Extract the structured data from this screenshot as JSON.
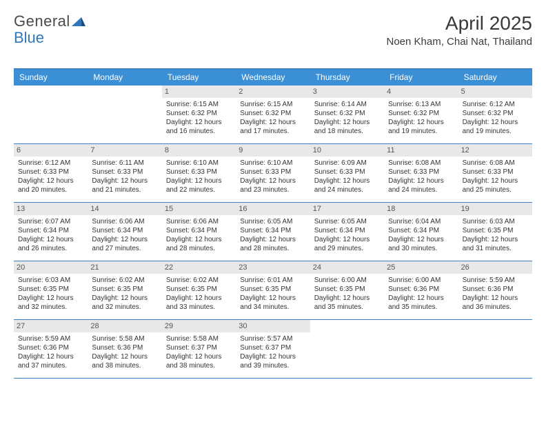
{
  "logo": {
    "part1": "General",
    "part2": "Blue"
  },
  "title": "April 2025",
  "location": "Noen Kham, Chai Nat, Thailand",
  "header_color": "#3b8fd4",
  "rule_color": "#3b7fc4",
  "daynum_bg": "#e8e8e8",
  "dow": [
    "Sunday",
    "Monday",
    "Tuesday",
    "Wednesday",
    "Thursday",
    "Friday",
    "Saturday"
  ],
  "weeks": [
    [
      null,
      null,
      {
        "n": "1",
        "sr": "Sunrise: 6:15 AM",
        "ss": "Sunset: 6:32 PM",
        "d1": "Daylight: 12 hours",
        "d2": "and 16 minutes."
      },
      {
        "n": "2",
        "sr": "Sunrise: 6:15 AM",
        "ss": "Sunset: 6:32 PM",
        "d1": "Daylight: 12 hours",
        "d2": "and 17 minutes."
      },
      {
        "n": "3",
        "sr": "Sunrise: 6:14 AM",
        "ss": "Sunset: 6:32 PM",
        "d1": "Daylight: 12 hours",
        "d2": "and 18 minutes."
      },
      {
        "n": "4",
        "sr": "Sunrise: 6:13 AM",
        "ss": "Sunset: 6:32 PM",
        "d1": "Daylight: 12 hours",
        "d2": "and 19 minutes."
      },
      {
        "n": "5",
        "sr": "Sunrise: 6:12 AM",
        "ss": "Sunset: 6:32 PM",
        "d1": "Daylight: 12 hours",
        "d2": "and 19 minutes."
      }
    ],
    [
      {
        "n": "6",
        "sr": "Sunrise: 6:12 AM",
        "ss": "Sunset: 6:33 PM",
        "d1": "Daylight: 12 hours",
        "d2": "and 20 minutes."
      },
      {
        "n": "7",
        "sr": "Sunrise: 6:11 AM",
        "ss": "Sunset: 6:33 PM",
        "d1": "Daylight: 12 hours",
        "d2": "and 21 minutes."
      },
      {
        "n": "8",
        "sr": "Sunrise: 6:10 AM",
        "ss": "Sunset: 6:33 PM",
        "d1": "Daylight: 12 hours",
        "d2": "and 22 minutes."
      },
      {
        "n": "9",
        "sr": "Sunrise: 6:10 AM",
        "ss": "Sunset: 6:33 PM",
        "d1": "Daylight: 12 hours",
        "d2": "and 23 minutes."
      },
      {
        "n": "10",
        "sr": "Sunrise: 6:09 AM",
        "ss": "Sunset: 6:33 PM",
        "d1": "Daylight: 12 hours",
        "d2": "and 24 minutes."
      },
      {
        "n": "11",
        "sr": "Sunrise: 6:08 AM",
        "ss": "Sunset: 6:33 PM",
        "d1": "Daylight: 12 hours",
        "d2": "and 24 minutes."
      },
      {
        "n": "12",
        "sr": "Sunrise: 6:08 AM",
        "ss": "Sunset: 6:33 PM",
        "d1": "Daylight: 12 hours",
        "d2": "and 25 minutes."
      }
    ],
    [
      {
        "n": "13",
        "sr": "Sunrise: 6:07 AM",
        "ss": "Sunset: 6:34 PM",
        "d1": "Daylight: 12 hours",
        "d2": "and 26 minutes."
      },
      {
        "n": "14",
        "sr": "Sunrise: 6:06 AM",
        "ss": "Sunset: 6:34 PM",
        "d1": "Daylight: 12 hours",
        "d2": "and 27 minutes."
      },
      {
        "n": "15",
        "sr": "Sunrise: 6:06 AM",
        "ss": "Sunset: 6:34 PM",
        "d1": "Daylight: 12 hours",
        "d2": "and 28 minutes."
      },
      {
        "n": "16",
        "sr": "Sunrise: 6:05 AM",
        "ss": "Sunset: 6:34 PM",
        "d1": "Daylight: 12 hours",
        "d2": "and 28 minutes."
      },
      {
        "n": "17",
        "sr": "Sunrise: 6:05 AM",
        "ss": "Sunset: 6:34 PM",
        "d1": "Daylight: 12 hours",
        "d2": "and 29 minutes."
      },
      {
        "n": "18",
        "sr": "Sunrise: 6:04 AM",
        "ss": "Sunset: 6:34 PM",
        "d1": "Daylight: 12 hours",
        "d2": "and 30 minutes."
      },
      {
        "n": "19",
        "sr": "Sunrise: 6:03 AM",
        "ss": "Sunset: 6:35 PM",
        "d1": "Daylight: 12 hours",
        "d2": "and 31 minutes."
      }
    ],
    [
      {
        "n": "20",
        "sr": "Sunrise: 6:03 AM",
        "ss": "Sunset: 6:35 PM",
        "d1": "Daylight: 12 hours",
        "d2": "and 32 minutes."
      },
      {
        "n": "21",
        "sr": "Sunrise: 6:02 AM",
        "ss": "Sunset: 6:35 PM",
        "d1": "Daylight: 12 hours",
        "d2": "and 32 minutes."
      },
      {
        "n": "22",
        "sr": "Sunrise: 6:02 AM",
        "ss": "Sunset: 6:35 PM",
        "d1": "Daylight: 12 hours",
        "d2": "and 33 minutes."
      },
      {
        "n": "23",
        "sr": "Sunrise: 6:01 AM",
        "ss": "Sunset: 6:35 PM",
        "d1": "Daylight: 12 hours",
        "d2": "and 34 minutes."
      },
      {
        "n": "24",
        "sr": "Sunrise: 6:00 AM",
        "ss": "Sunset: 6:35 PM",
        "d1": "Daylight: 12 hours",
        "d2": "and 35 minutes."
      },
      {
        "n": "25",
        "sr": "Sunrise: 6:00 AM",
        "ss": "Sunset: 6:36 PM",
        "d1": "Daylight: 12 hours",
        "d2": "and 35 minutes."
      },
      {
        "n": "26",
        "sr": "Sunrise: 5:59 AM",
        "ss": "Sunset: 6:36 PM",
        "d1": "Daylight: 12 hours",
        "d2": "and 36 minutes."
      }
    ],
    [
      {
        "n": "27",
        "sr": "Sunrise: 5:59 AM",
        "ss": "Sunset: 6:36 PM",
        "d1": "Daylight: 12 hours",
        "d2": "and 37 minutes."
      },
      {
        "n": "28",
        "sr": "Sunrise: 5:58 AM",
        "ss": "Sunset: 6:36 PM",
        "d1": "Daylight: 12 hours",
        "d2": "and 38 minutes."
      },
      {
        "n": "29",
        "sr": "Sunrise: 5:58 AM",
        "ss": "Sunset: 6:37 PM",
        "d1": "Daylight: 12 hours",
        "d2": "and 38 minutes."
      },
      {
        "n": "30",
        "sr": "Sunrise: 5:57 AM",
        "ss": "Sunset: 6:37 PM",
        "d1": "Daylight: 12 hours",
        "d2": "and 39 minutes."
      },
      null,
      null,
      null
    ]
  ]
}
